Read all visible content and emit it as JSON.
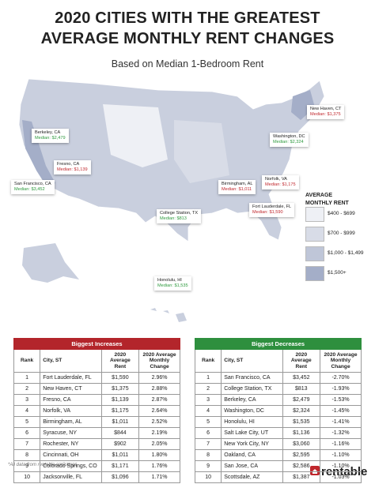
{
  "header": {
    "title_line1": "2020 CITIES WITH THE GREATEST",
    "title_line2": "AVERAGE MONTHLY RENT CHANGES",
    "subtitle": "Based on Median 1-Bedroom Rent"
  },
  "map": {
    "callouts": [
      {
        "city": "Berkeley, CA",
        "median": "Median: $2,479",
        "color": "#2e9a3e"
      },
      {
        "city": "Fresno, CA",
        "median": "Median: $1,139",
        "color": "#c0272d"
      },
      {
        "city": "San Francisco, CA",
        "median": "Median: $3,452",
        "color": "#2e9a3e"
      },
      {
        "city": "New Haven, CT",
        "median": "Median: $1,375",
        "color": "#c0272d"
      },
      {
        "city": "Washington, DC",
        "median": "Median: $2,324",
        "color": "#2e9a3e"
      },
      {
        "city": "Norfolk, VA",
        "median": "Median: $1,175",
        "color": "#c0272d"
      },
      {
        "city": "Birmingham, AL",
        "median": "Median: $1,011",
        "color": "#c0272d"
      },
      {
        "city": "College Station, TX",
        "median": "Median: $813",
        "color": "#2e9a3e"
      },
      {
        "city": "Fort Lauderdale, FL",
        "median": "Median: $1,590",
        "color": "#c0272d"
      },
      {
        "city": "Honolulu, HI",
        "median": "Median: $1,535",
        "color": "#2e9a3e"
      }
    ],
    "legend": {
      "title": "AVERAGE MONTHLY RENT",
      "items": [
        {
          "label": "$400 - $699",
          "color": "#eef0f5"
        },
        {
          "label": "$700 - $999",
          "color": "#d8dce7"
        },
        {
          "label": "$1,000 - $1,499",
          "color": "#bfc6d8"
        },
        {
          "label": "$1,500+",
          "color": "#a4aec8"
        }
      ]
    }
  },
  "increases": {
    "title": "Biggest Increases",
    "color": "#b3252b",
    "columns": [
      "Rank",
      "City, ST",
      "2020 Average Rent",
      "2020 Average Monthly Change"
    ],
    "rows": [
      [
        1,
        "Fort Lauderdale, FL",
        "$1,590",
        "2.96%"
      ],
      [
        2,
        "New Haven, CT",
        "$1,375",
        "2.88%"
      ],
      [
        3,
        "Fresno, CA",
        "$1,139",
        "2.87%"
      ],
      [
        4,
        "Norfolk, VA",
        "$1,175",
        "2.64%"
      ],
      [
        5,
        "Birmingham, AL",
        "$1,011",
        "2.52%"
      ],
      [
        6,
        "Syracuse, NY",
        "$844",
        "2.19%"
      ],
      [
        7,
        "Rochester, NY",
        "$902",
        "2.05%"
      ],
      [
        8,
        "Cincinnati, OH",
        "$1,011",
        "1.80%"
      ],
      [
        9,
        "Colorado Springs, CO",
        "$1,171",
        "1.76%"
      ],
      [
        10,
        "Jacksonville, FL",
        "$1,096",
        "1.71%"
      ]
    ]
  },
  "decreases": {
    "title": "Biggest Decreases",
    "color": "#2e8f3e",
    "columns": [
      "Rank",
      "City, ST",
      "2020 Average Rent",
      "2020 Average Monthly Change"
    ],
    "rows": [
      [
        1,
        "San Francisco, CA",
        "$3,452",
        "-2.70%"
      ],
      [
        2,
        "College Station, TX",
        "$813",
        "-1.93%"
      ],
      [
        3,
        "Berkeley, CA",
        "$2,479",
        "-1.53%"
      ],
      [
        4,
        "Washington, DC",
        "$2,324",
        "-1.45%"
      ],
      [
        5,
        "Honolulu, HI",
        "$1,535",
        "-1.41%"
      ],
      [
        6,
        "Salt Lake City, UT",
        "$1,136",
        "-1.32%"
      ],
      [
        7,
        "New York City, NY",
        "$3,060",
        "-1.16%"
      ],
      [
        8,
        "Oakland, CA",
        "$2,595",
        "-1.10%"
      ],
      [
        9,
        "San Jose, CA",
        "$2,586",
        "-1.10%"
      ],
      [
        10,
        "Scottsdale, AZ",
        "$1,387",
        "-1.03%"
      ]
    ]
  },
  "footer": {
    "note": "*All data from rentable.co listings",
    "brand": "rentable"
  }
}
